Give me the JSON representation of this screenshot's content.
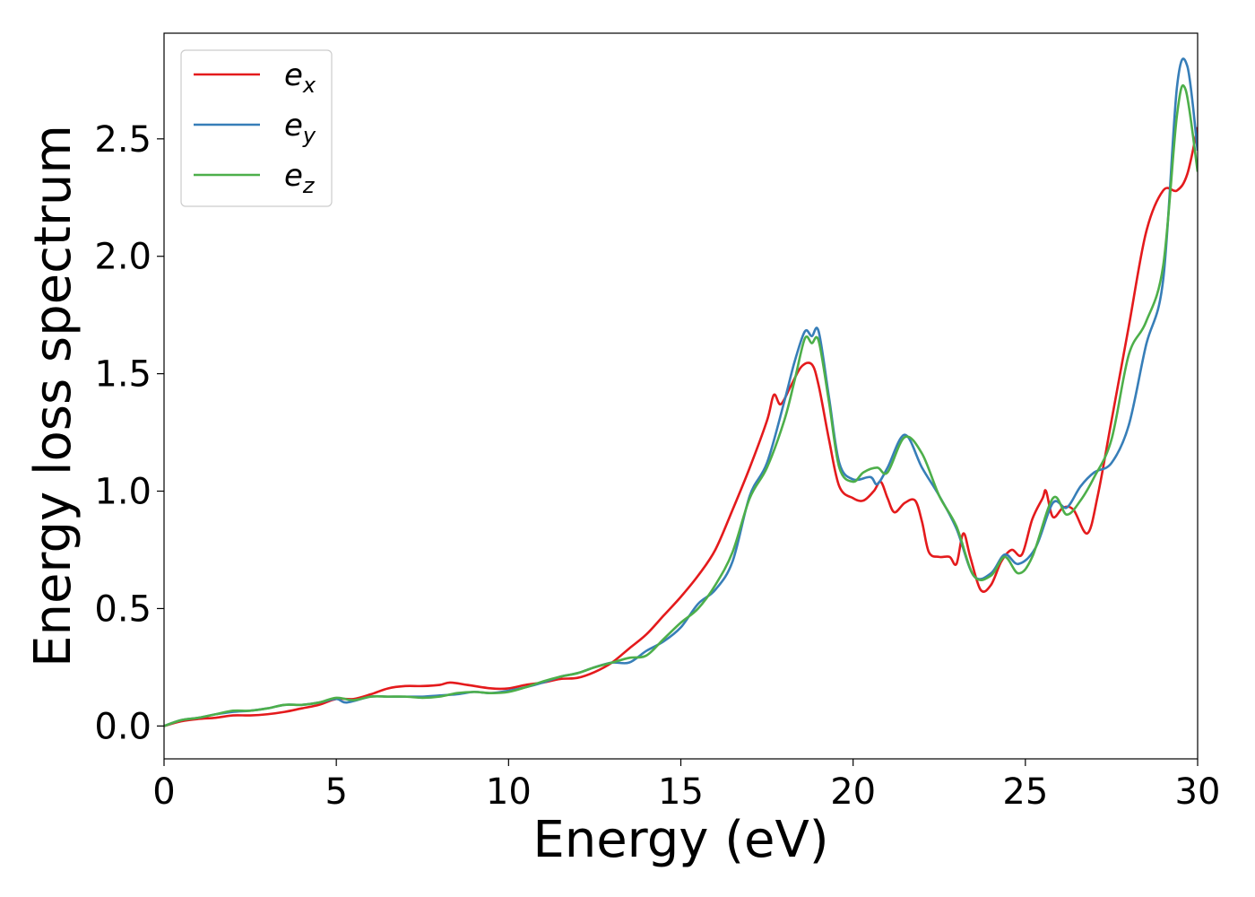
{
  "chart_data": {
    "type": "line",
    "title": "",
    "xlabel": "Energy (eV)",
    "ylabel": "Energy loss spectrum",
    "xlim": [
      0,
      30
    ],
    "ylim": [
      -0.14,
      2.95
    ],
    "xticks": [
      0,
      5,
      10,
      15,
      20,
      25,
      30
    ],
    "xtick_labels": [
      "0",
      "5",
      "10",
      "15",
      "20",
      "25",
      "30"
    ],
    "yticks": [
      0.0,
      0.5,
      1.0,
      1.5,
      2.0,
      2.5
    ],
    "ytick_labels": [
      "0.0",
      "0.5",
      "1.0",
      "1.5",
      "2.0",
      "2.5"
    ],
    "grid": false,
    "legend": {
      "placement": "top-left"
    },
    "series": [
      {
        "name": "e_x",
        "label_base": "e",
        "label_sub": "x",
        "color": "#e41a1c",
        "points": [
          [
            0,
            0
          ],
          [
            0.5,
            0.02
          ],
          [
            1,
            0.03
          ],
          [
            1.5,
            0.035
          ],
          [
            2,
            0.045
          ],
          [
            2.5,
            0.045
          ],
          [
            3,
            0.05
          ],
          [
            3.5,
            0.06
          ],
          [
            4,
            0.075
          ],
          [
            4.5,
            0.09
          ],
          [
            5,
            0.115
          ],
          [
            5.5,
            0.115
          ],
          [
            6,
            0.135
          ],
          [
            6.5,
            0.16
          ],
          [
            7,
            0.17
          ],
          [
            7.5,
            0.17
          ],
          [
            8,
            0.175
          ],
          [
            8.3,
            0.185
          ],
          [
            8.8,
            0.175
          ],
          [
            9.5,
            0.16
          ],
          [
            10,
            0.16
          ],
          [
            10.5,
            0.175
          ],
          [
            11,
            0.185
          ],
          [
            11.5,
            0.2
          ],
          [
            12,
            0.205
          ],
          [
            12.5,
            0.23
          ],
          [
            13,
            0.27
          ],
          [
            13.5,
            0.33
          ],
          [
            14,
            0.39
          ],
          [
            14.5,
            0.47
          ],
          [
            15,
            0.55
          ],
          [
            15.5,
            0.64
          ],
          [
            16,
            0.75
          ],
          [
            16.5,
            0.92
          ],
          [
            17,
            1.1
          ],
          [
            17.5,
            1.3
          ],
          [
            17.7,
            1.41
          ],
          [
            17.9,
            1.37
          ],
          [
            18.2,
            1.45
          ],
          [
            18.5,
            1.53
          ],
          [
            18.8,
            1.54
          ],
          [
            19,
            1.45
          ],
          [
            19.3,
            1.22
          ],
          [
            19.6,
            1.02
          ],
          [
            20,
            0.97
          ],
          [
            20.3,
            0.96
          ],
          [
            20.6,
            1.0
          ],
          [
            20.8,
            1.04
          ],
          [
            21,
            0.97
          ],
          [
            21.2,
            0.91
          ],
          [
            21.5,
            0.95
          ],
          [
            21.8,
            0.96
          ],
          [
            22,
            0.87
          ],
          [
            22.2,
            0.74
          ],
          [
            22.5,
            0.72
          ],
          [
            22.8,
            0.72
          ],
          [
            23,
            0.69
          ],
          [
            23.2,
            0.82
          ],
          [
            23.4,
            0.72
          ],
          [
            23.7,
            0.58
          ],
          [
            24,
            0.6
          ],
          [
            24.3,
            0.7
          ],
          [
            24.6,
            0.75
          ],
          [
            24.9,
            0.73
          ],
          [
            25.2,
            0.88
          ],
          [
            25.5,
            0.97
          ],
          [
            25.6,
            1.0
          ],
          [
            25.8,
            0.89
          ],
          [
            26.1,
            0.93
          ],
          [
            26.4,
            0.92
          ],
          [
            26.8,
            0.82
          ],
          [
            27.1,
            0.98
          ],
          [
            27.5,
            1.3
          ],
          [
            28,
            1.7
          ],
          [
            28.5,
            2.1
          ],
          [
            29,
            2.28
          ],
          [
            29.4,
            2.28
          ],
          [
            29.7,
            2.35
          ],
          [
            30,
            2.55
          ]
        ]
      },
      {
        "name": "e_y",
        "label_base": "e",
        "label_sub": "y",
        "color": "#377eb8",
        "points": [
          [
            0,
            0
          ],
          [
            0.5,
            0.025
          ],
          [
            1,
            0.035
          ],
          [
            1.5,
            0.05
          ],
          [
            2,
            0.06
          ],
          [
            2.5,
            0.065
          ],
          [
            3,
            0.075
          ],
          [
            3.5,
            0.09
          ],
          [
            4,
            0.09
          ],
          [
            4.5,
            0.1
          ],
          [
            5,
            0.115
          ],
          [
            5.3,
            0.1
          ],
          [
            6,
            0.125
          ],
          [
            6.5,
            0.125
          ],
          [
            7,
            0.125
          ],
          [
            7.5,
            0.125
          ],
          [
            8,
            0.13
          ],
          [
            8.5,
            0.135
          ],
          [
            9,
            0.145
          ],
          [
            9.5,
            0.14
          ],
          [
            10,
            0.15
          ],
          [
            10.5,
            0.165
          ],
          [
            11,
            0.185
          ],
          [
            11.5,
            0.21
          ],
          [
            12,
            0.225
          ],
          [
            12.5,
            0.25
          ],
          [
            13,
            0.27
          ],
          [
            13.5,
            0.27
          ],
          [
            14,
            0.32
          ],
          [
            14.5,
            0.36
          ],
          [
            15,
            0.42
          ],
          [
            15.5,
            0.52
          ],
          [
            16,
            0.58
          ],
          [
            16.5,
            0.7
          ],
          [
            17,
            0.98
          ],
          [
            17.5,
            1.12
          ],
          [
            18,
            1.38
          ],
          [
            18.3,
            1.55
          ],
          [
            18.6,
            1.68
          ],
          [
            18.8,
            1.66
          ],
          [
            19,
            1.68
          ],
          [
            19.3,
            1.4
          ],
          [
            19.6,
            1.12
          ],
          [
            20,
            1.05
          ],
          [
            20.5,
            1.06
          ],
          [
            20.7,
            1.03
          ],
          [
            21,
            1.1
          ],
          [
            21.5,
            1.24
          ],
          [
            22,
            1.1
          ],
          [
            22.5,
            0.98
          ],
          [
            23,
            0.84
          ],
          [
            23.5,
            0.64
          ],
          [
            24,
            0.65
          ],
          [
            24.4,
            0.73
          ],
          [
            24.8,
            0.69
          ],
          [
            25.3,
            0.76
          ],
          [
            25.8,
            0.95
          ],
          [
            26.2,
            0.93
          ],
          [
            26.6,
            1.02
          ],
          [
            27,
            1.08
          ],
          [
            27.5,
            1.12
          ],
          [
            28,
            1.28
          ],
          [
            28.5,
            1.62
          ],
          [
            29,
            1.9
          ],
          [
            29.4,
            2.72
          ],
          [
            29.7,
            2.81
          ],
          [
            30,
            2.45
          ]
        ]
      },
      {
        "name": "e_z",
        "label_base": "e",
        "label_sub": "z",
        "color": "#4daf4a",
        "points": [
          [
            0,
            0
          ],
          [
            0.5,
            0.025
          ],
          [
            1,
            0.035
          ],
          [
            1.5,
            0.05
          ],
          [
            2,
            0.065
          ],
          [
            2.5,
            0.065
          ],
          [
            3,
            0.075
          ],
          [
            3.5,
            0.09
          ],
          [
            4,
            0.09
          ],
          [
            4.5,
            0.1
          ],
          [
            5,
            0.12
          ],
          [
            5.5,
            0.11
          ],
          [
            6,
            0.125
          ],
          [
            6.5,
            0.125
          ],
          [
            7,
            0.125
          ],
          [
            7.5,
            0.12
          ],
          [
            8,
            0.125
          ],
          [
            8.5,
            0.14
          ],
          [
            9,
            0.145
          ],
          [
            9.5,
            0.14
          ],
          [
            10,
            0.145
          ],
          [
            10.5,
            0.165
          ],
          [
            11,
            0.19
          ],
          [
            11.5,
            0.21
          ],
          [
            12,
            0.225
          ],
          [
            12.5,
            0.25
          ],
          [
            13,
            0.27
          ],
          [
            13.5,
            0.29
          ],
          [
            14,
            0.3
          ],
          [
            14.5,
            0.37
          ],
          [
            15,
            0.44
          ],
          [
            15.5,
            0.5
          ],
          [
            16,
            0.6
          ],
          [
            16.5,
            0.74
          ],
          [
            17,
            0.97
          ],
          [
            17.5,
            1.1
          ],
          [
            18,
            1.3
          ],
          [
            18.3,
            1.47
          ],
          [
            18.6,
            1.65
          ],
          [
            18.8,
            1.63
          ],
          [
            19,
            1.64
          ],
          [
            19.3,
            1.38
          ],
          [
            19.6,
            1.1
          ],
          [
            20,
            1.04
          ],
          [
            20.3,
            1.08
          ],
          [
            20.7,
            1.1
          ],
          [
            21,
            1.08
          ],
          [
            21.5,
            1.23
          ],
          [
            22,
            1.16
          ],
          [
            22.5,
            0.98
          ],
          [
            23,
            0.85
          ],
          [
            23.5,
            0.64
          ],
          [
            24,
            0.64
          ],
          [
            24.4,
            0.72
          ],
          [
            24.8,
            0.65
          ],
          [
            25.2,
            0.72
          ],
          [
            25.8,
            0.97
          ],
          [
            26.2,
            0.9
          ],
          [
            26.6,
            0.96
          ],
          [
            27,
            1.06
          ],
          [
            27.5,
            1.22
          ],
          [
            28,
            1.58
          ],
          [
            28.5,
            1.72
          ],
          [
            29,
            1.96
          ],
          [
            29.4,
            2.6
          ],
          [
            29.65,
            2.71
          ],
          [
            30,
            2.36
          ]
        ]
      }
    ]
  }
}
